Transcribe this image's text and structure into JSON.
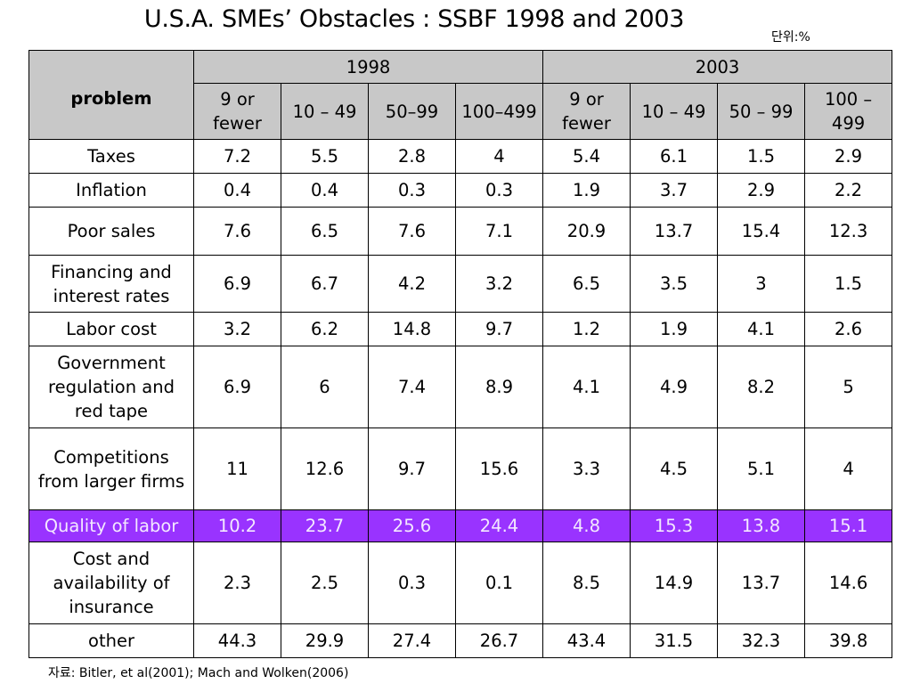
{
  "header": {
    "title": "U.S.A. SMEs’ Obstacles : SSBF 1998 and 2003",
    "unit": "단위:%"
  },
  "table": {
    "corner_label": "problem",
    "years": [
      "1998",
      "2003"
    ],
    "size_groups": [
      "9 or fewer",
      "10 – 49",
      "50–99",
      "100–499",
      "9 or fewer",
      "10 – 49",
      "50 – 99",
      "100 – 499"
    ],
    "rows": [
      {
        "problem": "Taxes",
        "values": [
          "7.2",
          "5.5",
          "2.8",
          "4",
          "5.4",
          "6.1",
          "1.5",
          "2.9"
        ]
      },
      {
        "problem": "Inflation",
        "values": [
          "0.4",
          "0.4",
          "0.3",
          "0.3",
          "1.9",
          "3.7",
          "2.9",
          "2.2"
        ]
      },
      {
        "problem": "Poor sales",
        "values": [
          "7.6",
          "6.5",
          "7.6",
          "7.1",
          "20.9",
          "13.7",
          "15.4",
          "12.3"
        ]
      },
      {
        "problem": "Financing and interest rates",
        "values": [
          "6.9",
          "6.7",
          "4.2",
          "3.2",
          "6.5",
          "3.5",
          "3",
          "1.5"
        ]
      },
      {
        "problem": "Labor cost",
        "values": [
          "3.2",
          "6.2",
          "14.8",
          "9.7",
          "1.2",
          "1.9",
          "4.1",
          "2.6"
        ]
      },
      {
        "problem": "Government regulation and red tape",
        "values": [
          "6.9",
          "6",
          "7.4",
          "8.9",
          "4.1",
          "4.9",
          "8.2",
          "5"
        ]
      },
      {
        "problem": "Competitions from larger firms",
        "values": [
          "11",
          "12.6",
          "9.7",
          "15.6",
          "3.3",
          "4.5",
          "5.1",
          "4"
        ]
      },
      {
        "problem": "Quality of labor",
        "values": [
          "10.2",
          "23.7",
          "25.6",
          "24.4",
          "4.8",
          "15.3",
          "13.8",
          "15.1"
        ]
      },
      {
        "problem": "Cost and availability of insurance",
        "values": [
          "2.3",
          "2.5",
          "0.3",
          "0.1",
          "8.5",
          "14.9",
          "13.7",
          "14.6"
        ]
      },
      {
        "problem": "other",
        "values": [
          "44.3",
          "29.9",
          "27.4",
          "26.7",
          "43.4",
          "31.5",
          "32.3",
          "39.8"
        ]
      }
    ]
  },
  "highlight": {
    "row_problem": "Quality of labor",
    "color": "#9933ff"
  },
  "source": "자료: Bitler, et al(2001); Mach and Wolken(2006)"
}
